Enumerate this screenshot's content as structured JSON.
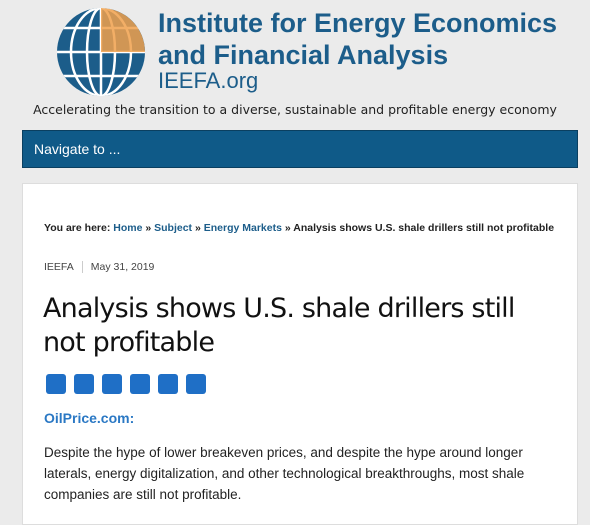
{
  "header": {
    "title_line1": "Institute for Energy Economics",
    "title_line2": "and Financial Analysis",
    "site": "IEEFA.org",
    "tagline": "Accelerating the transition to a diverse, sustainable and profitable energy economy"
  },
  "nav": {
    "label": "Navigate to ..."
  },
  "breadcrumb": {
    "prefix": "You are here:",
    "links": [
      "Home",
      "Subject",
      "Energy Markets"
    ],
    "separator": "»",
    "current": "Analysis shows U.S. shale drillers still not profitable"
  },
  "post": {
    "author": "IEEFA",
    "date": "May 31, 2019",
    "title": "Analysis shows U.S. shale drillers still not profitable",
    "source": "OilPrice.com:",
    "body": "Despite the hype of lower breakeven prices, and despite the hype around longer laterals, energy digitalization, and other technological breakthroughs, most shale companies are still not profitable."
  }
}
